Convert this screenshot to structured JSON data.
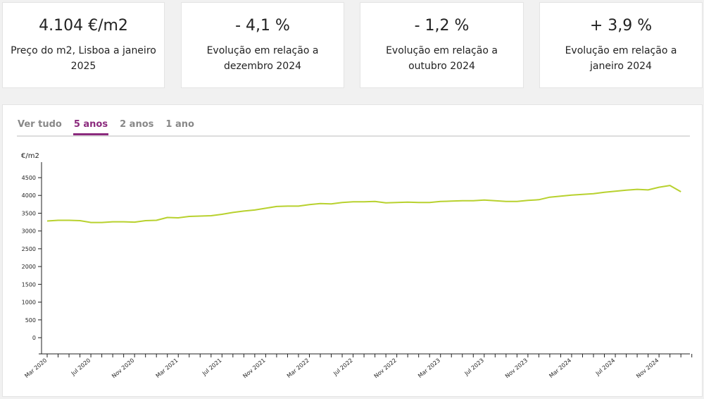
{
  "cards": [
    {
      "value": "4.104 €/m2",
      "label": "Preço do m2, Lisboa a janeiro 2025"
    },
    {
      "value": "- 4,1 %",
      "label": "Evolução em relação a dezembro 2024"
    },
    {
      "value": "- 1,2 %",
      "label": "Evolução em relação a outubro 2024"
    },
    {
      "value": "+ 3,9 %",
      "label": "Evolução em relação a janeiro 2024"
    }
  ],
  "tabs": [
    {
      "label": "Ver tudo"
    },
    {
      "label": "5 anos",
      "active": true
    },
    {
      "label": "2 anos"
    },
    {
      "label": "1 ano"
    }
  ],
  "colors": {
    "line": "#b8d12e",
    "accent": "#8b2a7d"
  },
  "chart_data": {
    "type": "line",
    "ylabel": "€/m2",
    "ylim": [
      0,
      4500
    ],
    "yticks": [
      0,
      500,
      1000,
      1500,
      2000,
      2500,
      3000,
      3500,
      4000,
      4500
    ],
    "start": "Mar 2020",
    "end": "Jan 2025",
    "xtick_labels": [
      "Mar 2020",
      "Jul 2020",
      "Nov 2020",
      "Mar 2021",
      "Jul 2021",
      "Nov 2021",
      "Mar 2022",
      "Jul 2022",
      "Nov 2022",
      "Mar 2023",
      "Jul 2023",
      "Nov 2023",
      "Mar 2024",
      "Jul 2024",
      "Nov 2024"
    ],
    "series": [
      {
        "name": "Preço do m2 Lisboa",
        "values": [
          3280,
          3300,
          3300,
          3290,
          3240,
          3240,
          3260,
          3260,
          3250,
          3290,
          3300,
          3380,
          3370,
          3410,
          3420,
          3430,
          3470,
          3520,
          3560,
          3590,
          3640,
          3690,
          3700,
          3700,
          3740,
          3770,
          3760,
          3800,
          3820,
          3820,
          3830,
          3790,
          3800,
          3810,
          3800,
          3800,
          3830,
          3840,
          3850,
          3850,
          3870,
          3850,
          3830,
          3830,
          3860,
          3880,
          3950,
          3980,
          4010,
          4030,
          4050,
          4090,
          4120,
          4150,
          4170,
          4155,
          4230,
          4280,
          4104
        ]
      }
    ]
  }
}
